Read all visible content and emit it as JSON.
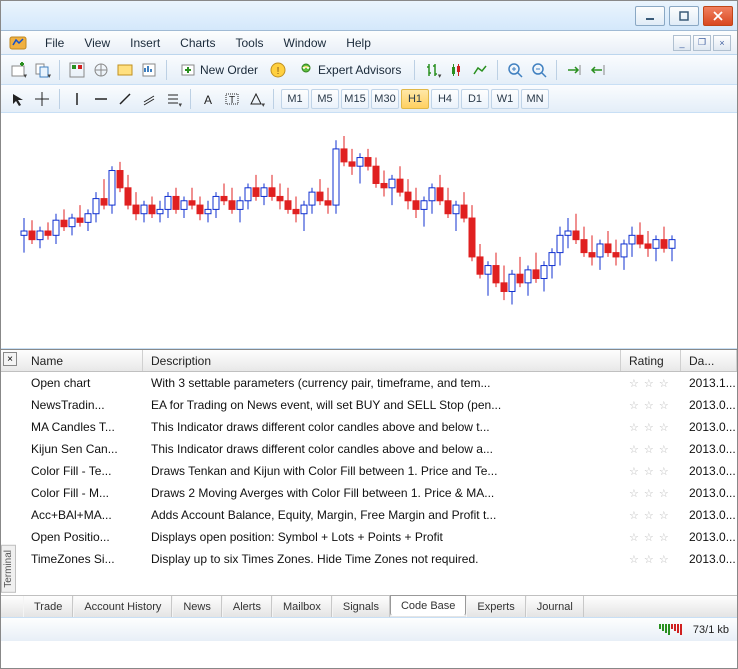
{
  "menubar": {
    "items": [
      "File",
      "View",
      "Insert",
      "Charts",
      "Tools",
      "Window",
      "Help"
    ]
  },
  "toolbar1": {
    "new_order_label": "New Order",
    "expert_advisors_label": "Expert Advisors"
  },
  "toolbar2": {
    "timeframes": [
      "M1",
      "M5",
      "M15",
      "M30",
      "H1",
      "H4",
      "D1",
      "W1",
      "MN"
    ],
    "active_tf_index": 4
  },
  "chart": {
    "type": "candlestick",
    "background_color": "#ffffff",
    "up_body_color": "#ffffff",
    "up_border_color": "#1030d0",
    "up_wick_color": "#1030d0",
    "down_body_color": "#e02020",
    "down_border_color": "#e02020",
    "down_wick_color": "#e02020",
    "ylim": [
      0,
      100
    ],
    "candle_width": 6,
    "candle_gap": 2,
    "candles": [
      {
        "o": 48,
        "h": 56,
        "l": 40,
        "c": 50,
        "dir": "up"
      },
      {
        "o": 50,
        "h": 55,
        "l": 44,
        "c": 46,
        "dir": "down"
      },
      {
        "o": 46,
        "h": 52,
        "l": 42,
        "c": 50,
        "dir": "up"
      },
      {
        "o": 50,
        "h": 54,
        "l": 46,
        "c": 48,
        "dir": "down"
      },
      {
        "o": 48,
        "h": 58,
        "l": 44,
        "c": 55,
        "dir": "up"
      },
      {
        "o": 55,
        "h": 60,
        "l": 50,
        "c": 52,
        "dir": "down"
      },
      {
        "o": 52,
        "h": 58,
        "l": 48,
        "c": 56,
        "dir": "up"
      },
      {
        "o": 56,
        "h": 62,
        "l": 52,
        "c": 54,
        "dir": "down"
      },
      {
        "o": 54,
        "h": 60,
        "l": 50,
        "c": 58,
        "dir": "up"
      },
      {
        "o": 58,
        "h": 68,
        "l": 54,
        "c": 65,
        "dir": "up"
      },
      {
        "o": 65,
        "h": 74,
        "l": 60,
        "c": 62,
        "dir": "down"
      },
      {
        "o": 62,
        "h": 80,
        "l": 58,
        "c": 78,
        "dir": "up"
      },
      {
        "o": 78,
        "h": 82,
        "l": 68,
        "c": 70,
        "dir": "down"
      },
      {
        "o": 70,
        "h": 76,
        "l": 60,
        "c": 62,
        "dir": "down"
      },
      {
        "o": 62,
        "h": 68,
        "l": 55,
        "c": 58,
        "dir": "down"
      },
      {
        "o": 58,
        "h": 64,
        "l": 54,
        "c": 62,
        "dir": "up"
      },
      {
        "o": 62,
        "h": 66,
        "l": 56,
        "c": 58,
        "dir": "down"
      },
      {
        "o": 58,
        "h": 64,
        "l": 54,
        "c": 60,
        "dir": "up"
      },
      {
        "o": 60,
        "h": 68,
        "l": 56,
        "c": 66,
        "dir": "up"
      },
      {
        "o": 66,
        "h": 70,
        "l": 58,
        "c": 60,
        "dir": "down"
      },
      {
        "o": 60,
        "h": 66,
        "l": 56,
        "c": 64,
        "dir": "up"
      },
      {
        "o": 64,
        "h": 70,
        "l": 60,
        "c": 62,
        "dir": "down"
      },
      {
        "o": 62,
        "h": 66,
        "l": 55,
        "c": 58,
        "dir": "down"
      },
      {
        "o": 58,
        "h": 64,
        "l": 54,
        "c": 60,
        "dir": "up"
      },
      {
        "o": 60,
        "h": 68,
        "l": 56,
        "c": 66,
        "dir": "up"
      },
      {
        "o": 66,
        "h": 72,
        "l": 62,
        "c": 64,
        "dir": "down"
      },
      {
        "o": 64,
        "h": 70,
        "l": 58,
        "c": 60,
        "dir": "down"
      },
      {
        "o": 60,
        "h": 66,
        "l": 54,
        "c": 64,
        "dir": "up"
      },
      {
        "o": 64,
        "h": 72,
        "l": 60,
        "c": 70,
        "dir": "up"
      },
      {
        "o": 70,
        "h": 76,
        "l": 64,
        "c": 66,
        "dir": "down"
      },
      {
        "o": 66,
        "h": 72,
        "l": 62,
        "c": 70,
        "dir": "up"
      },
      {
        "o": 70,
        "h": 76,
        "l": 64,
        "c": 66,
        "dir": "down"
      },
      {
        "o": 66,
        "h": 72,
        "l": 60,
        "c": 64,
        "dir": "down"
      },
      {
        "o": 64,
        "h": 70,
        "l": 58,
        "c": 60,
        "dir": "down"
      },
      {
        "o": 60,
        "h": 66,
        "l": 54,
        "c": 58,
        "dir": "down"
      },
      {
        "o": 58,
        "h": 64,
        "l": 50,
        "c": 62,
        "dir": "up"
      },
      {
        "o": 62,
        "h": 70,
        "l": 58,
        "c": 68,
        "dir": "up"
      },
      {
        "o": 68,
        "h": 74,
        "l": 62,
        "c": 64,
        "dir": "down"
      },
      {
        "o": 64,
        "h": 70,
        "l": 58,
        "c": 62,
        "dir": "down"
      },
      {
        "o": 62,
        "h": 92,
        "l": 58,
        "c": 88,
        "dir": "up"
      },
      {
        "o": 88,
        "h": 94,
        "l": 80,
        "c": 82,
        "dir": "down"
      },
      {
        "o": 82,
        "h": 88,
        "l": 76,
        "c": 80,
        "dir": "down"
      },
      {
        "o": 80,
        "h": 86,
        "l": 72,
        "c": 84,
        "dir": "up"
      },
      {
        "o": 84,
        "h": 88,
        "l": 78,
        "c": 80,
        "dir": "down"
      },
      {
        "o": 80,
        "h": 84,
        "l": 70,
        "c": 72,
        "dir": "down"
      },
      {
        "o": 72,
        "h": 78,
        "l": 66,
        "c": 70,
        "dir": "down"
      },
      {
        "o": 70,
        "h": 76,
        "l": 62,
        "c": 74,
        "dir": "up"
      },
      {
        "o": 74,
        "h": 80,
        "l": 66,
        "c": 68,
        "dir": "down"
      },
      {
        "o": 68,
        "h": 74,
        "l": 60,
        "c": 64,
        "dir": "down"
      },
      {
        "o": 64,
        "h": 70,
        "l": 56,
        "c": 60,
        "dir": "down"
      },
      {
        "o": 60,
        "h": 66,
        "l": 52,
        "c": 64,
        "dir": "up"
      },
      {
        "o": 64,
        "h": 72,
        "l": 58,
        "c": 70,
        "dir": "up"
      },
      {
        "o": 70,
        "h": 76,
        "l": 62,
        "c": 64,
        "dir": "down"
      },
      {
        "o": 64,
        "h": 70,
        "l": 56,
        "c": 58,
        "dir": "down"
      },
      {
        "o": 58,
        "h": 64,
        "l": 50,
        "c": 62,
        "dir": "up"
      },
      {
        "o": 62,
        "h": 68,
        "l": 54,
        "c": 56,
        "dir": "down"
      },
      {
        "o": 56,
        "h": 62,
        "l": 36,
        "c": 38,
        "dir": "down"
      },
      {
        "o": 38,
        "h": 44,
        "l": 28,
        "c": 30,
        "dir": "down"
      },
      {
        "o": 30,
        "h": 36,
        "l": 20,
        "c": 34,
        "dir": "up"
      },
      {
        "o": 34,
        "h": 40,
        "l": 24,
        "c": 26,
        "dir": "down"
      },
      {
        "o": 26,
        "h": 34,
        "l": 18,
        "c": 22,
        "dir": "down"
      },
      {
        "o": 22,
        "h": 32,
        "l": 16,
        "c": 30,
        "dir": "up"
      },
      {
        "o": 30,
        "h": 38,
        "l": 24,
        "c": 26,
        "dir": "down"
      },
      {
        "o": 26,
        "h": 34,
        "l": 20,
        "c": 32,
        "dir": "up"
      },
      {
        "o": 32,
        "h": 40,
        "l": 26,
        "c": 28,
        "dir": "down"
      },
      {
        "o": 28,
        "h": 36,
        "l": 22,
        "c": 34,
        "dir": "up"
      },
      {
        "o": 34,
        "h": 42,
        "l": 28,
        "c": 40,
        "dir": "up"
      },
      {
        "o": 40,
        "h": 52,
        "l": 34,
        "c": 48,
        "dir": "up"
      },
      {
        "o": 48,
        "h": 56,
        "l": 42,
        "c": 50,
        "dir": "up"
      },
      {
        "o": 50,
        "h": 58,
        "l": 44,
        "c": 46,
        "dir": "down"
      },
      {
        "o": 46,
        "h": 52,
        "l": 38,
        "c": 40,
        "dir": "down"
      },
      {
        "o": 40,
        "h": 48,
        "l": 34,
        "c": 38,
        "dir": "down"
      },
      {
        "o": 38,
        "h": 46,
        "l": 32,
        "c": 44,
        "dir": "up"
      },
      {
        "o": 44,
        "h": 50,
        "l": 38,
        "c": 40,
        "dir": "down"
      },
      {
        "o": 40,
        "h": 46,
        "l": 34,
        "c": 38,
        "dir": "down"
      },
      {
        "o": 38,
        "h": 46,
        "l": 32,
        "c": 44,
        "dir": "up"
      },
      {
        "o": 44,
        "h": 52,
        "l": 38,
        "c": 48,
        "dir": "up"
      },
      {
        "o": 48,
        "h": 54,
        "l": 42,
        "c": 44,
        "dir": "down"
      },
      {
        "o": 44,
        "h": 50,
        "l": 38,
        "c": 42,
        "dir": "down"
      },
      {
        "o": 42,
        "h": 48,
        "l": 36,
        "c": 46,
        "dir": "up"
      },
      {
        "o": 46,
        "h": 52,
        "l": 40,
        "c": 42,
        "dir": "down"
      },
      {
        "o": 42,
        "h": 48,
        "l": 36,
        "c": 46,
        "dir": "up"
      }
    ]
  },
  "terminal": {
    "side_label": "Terminal",
    "columns": {
      "name": "Name",
      "desc": "Description",
      "rating": "Rating",
      "date": "Da..."
    },
    "rows": [
      {
        "icon": "chart-icon",
        "name": "Open chart",
        "desc": "With 3 settable parameters (currency pair, timeframe, and tem...",
        "date": "2013.1..."
      },
      {
        "icon": "news-icon",
        "name": "NewsTradin...",
        "desc": "EA for Trading on News event, will set BUY and SELL Stop (pen...",
        "date": "2013.0..."
      },
      {
        "icon": "indicator-icon",
        "name": "MA Candles T...",
        "desc": "This Indicator draws different color candles above and below t...",
        "date": "2013.0..."
      },
      {
        "icon": "indicator-icon",
        "name": "Kijun Sen Can...",
        "desc": "This Indicator draws different color candles above and below a...",
        "date": "2013.0..."
      },
      {
        "icon": "indicator-icon",
        "name": "Color Fill - Te...",
        "desc": "Draws Tenkan and Kijun with Color Fill between 1. Price and Te...",
        "date": "2013.0..."
      },
      {
        "icon": "indicator-icon",
        "name": "Color Fill - M...",
        "desc": "Draws 2 Moving Averges with Color Fill between 1. Price & MA...",
        "date": "2013.0..."
      },
      {
        "icon": "indicator-icon",
        "name": "Acc+BAl+MA...",
        "desc": "Adds Account Balance, Equity, Margin, Free Margin and Profit t...",
        "date": "2013.0..."
      },
      {
        "icon": "indicator-icon",
        "name": "Open Positio...",
        "desc": "Displays open position: Symbol + Lots + Points + Profit",
        "date": "2013.0..."
      },
      {
        "icon": "indicator-icon",
        "name": "TimeZones Si...",
        "desc": "Display up to six Times Zones. Hide Time Zones not required.",
        "date": "2013.0..."
      }
    ],
    "tabs": [
      "Trade",
      "Account History",
      "News",
      "Alerts",
      "Mailbox",
      "Signals",
      "Code Base",
      "Experts",
      "Journal"
    ],
    "active_tab_index": 6,
    "star_text": "☆ ☆ ☆"
  },
  "statusbar": {
    "conn_bars": [
      {
        "h": 5,
        "c": "#2a9020"
      },
      {
        "h": 7,
        "c": "#2a9020"
      },
      {
        "h": 9,
        "c": "#2a9020"
      },
      {
        "h": 11,
        "c": "#2a9020"
      },
      {
        "h": 5,
        "c": "#d02020"
      },
      {
        "h": 7,
        "c": "#d02020"
      },
      {
        "h": 9,
        "c": "#d02020"
      },
      {
        "h": 11,
        "c": "#d02020"
      }
    ],
    "text": "73/1 kb"
  }
}
